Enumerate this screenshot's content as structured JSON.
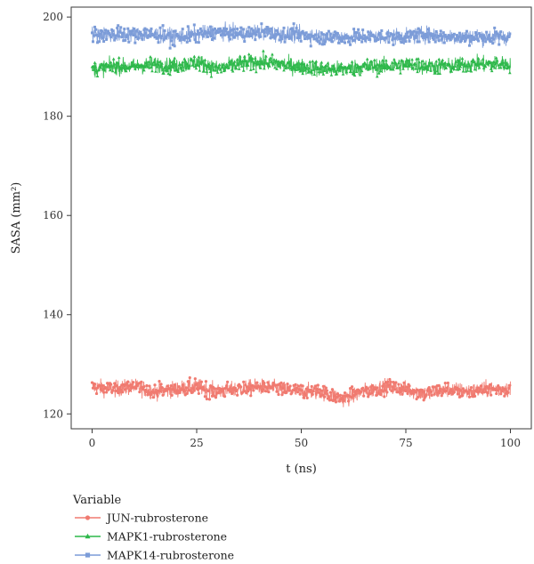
{
  "chart_data": {
    "type": "line",
    "xlabel": "t (ns)",
    "ylabel": "SASA (mm²)",
    "xlim": [
      -5,
      105
    ],
    "ylim": [
      117,
      202
    ],
    "x_ticks": [
      0,
      25,
      50,
      75,
      100
    ],
    "y_ticks": [
      120,
      140,
      160,
      180,
      200
    ],
    "grid": false,
    "legend": {
      "title": "Variable",
      "placement": "bottom-left"
    },
    "series": [
      {
        "name": "JUN-rubrosterone",
        "color": "#F07A70",
        "marker": "circle",
        "x": [
          0,
          5,
          10,
          15,
          20,
          25,
          30,
          35,
          40,
          45,
          50,
          55,
          60,
          65,
          70,
          75,
          80,
          85,
          90,
          95,
          100
        ],
        "values": [
          125.5,
          125,
          125.5,
          124.5,
          125,
          125.5,
          124.5,
          125,
          125.5,
          125,
          124.5,
          124.5,
          123,
          124.5,
          125.5,
          125,
          124,
          125,
          124.5,
          125,
          125
        ],
        "min": 120.5,
        "max": 129
      },
      {
        "name": "MAPK1-rubrosterone",
        "color": "#2DB84A",
        "marker": "triangle",
        "x": [
          0,
          5,
          10,
          15,
          20,
          25,
          30,
          35,
          40,
          45,
          50,
          55,
          60,
          65,
          70,
          75,
          80,
          85,
          90,
          95,
          100
        ],
        "values": [
          189.5,
          190,
          190,
          190.5,
          190,
          191,
          189.5,
          190.5,
          191,
          190.5,
          190,
          189.5,
          189.5,
          190,
          190,
          190.5,
          190,
          190,
          190.5,
          190.5,
          190.5
        ],
        "min": 185,
        "max": 194
      },
      {
        "name": "MAPK14-rubrosterone",
        "color": "#7C9CD8",
        "marker": "square",
        "x": [
          0,
          5,
          10,
          15,
          20,
          25,
          30,
          35,
          40,
          45,
          50,
          55,
          60,
          65,
          70,
          75,
          80,
          85,
          90,
          95,
          100
        ],
        "values": [
          196.5,
          196.5,
          196.5,
          196.5,
          196,
          196.5,
          197,
          196.5,
          197,
          196.5,
          196.5,
          196,
          196,
          196,
          196,
          196,
          196.5,
          196,
          196,
          196,
          196
        ],
        "min": 192,
        "max": 201.5
      }
    ]
  }
}
